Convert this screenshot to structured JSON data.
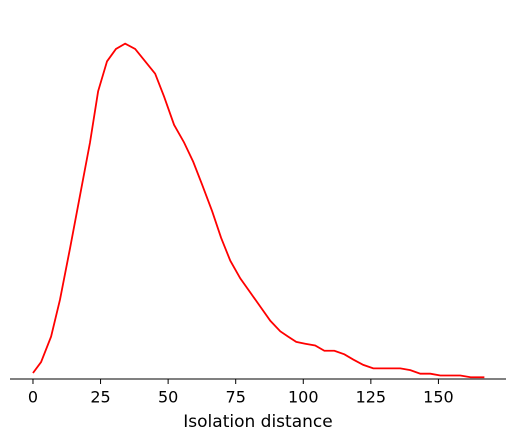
{
  "chart_data": {
    "type": "line",
    "xlabel": "Isolation distance",
    "x": [
      0,
      3,
      6.7,
      10,
      13.7,
      17.4,
      21.1,
      24.1,
      27.4,
      30.7,
      34.1,
      37.8,
      41.5,
      45.2,
      48.5,
      52.2,
      55.9,
      59.3,
      62.6,
      66.3,
      69.6,
      73,
      76.7,
      80.4,
      84.1,
      87.8,
      91.5,
      94.4,
      97.4,
      100.7,
      104.4,
      107.8,
      111.5,
      115.2,
      118.5,
      122.2,
      125.9,
      129.3,
      133,
      135.9,
      139.6,
      143.3,
      147,
      150.7,
      154.4,
      158.1,
      161.9,
      167
    ],
    "series": [
      {
        "color": "#ff0000",
        "values": [
          0.00034,
          0.00096,
          0.0024,
          0.0045,
          0.0074,
          0.0104,
          0.0134,
          0.0163,
          0.018,
          0.0187,
          0.019,
          0.0187,
          0.018,
          0.0173,
          0.016,
          0.0144,
          0.0134,
          0.0123,
          0.011,
          0.0095,
          0.008,
          0.0067,
          0.0057,
          0.0049,
          0.0041,
          0.0033,
          0.0027,
          0.0024,
          0.0021,
          0.002,
          0.0019,
          0.0016,
          0.0016,
          0.0014,
          0.0011,
          0.0008,
          0.0006,
          0.0006,
          0.0006,
          0.0006,
          0.0005,
          0.0003,
          0.0003,
          0.0002,
          0.0002,
          0.0002,
          0.0001,
          0.0001
        ]
      }
    ],
    "xlim": [
      -8.5,
      175
    ],
    "xticks": [
      0,
      25,
      50,
      75,
      100,
      125,
      150
    ],
    "ylim": [
      0,
      0.02
    ]
  }
}
